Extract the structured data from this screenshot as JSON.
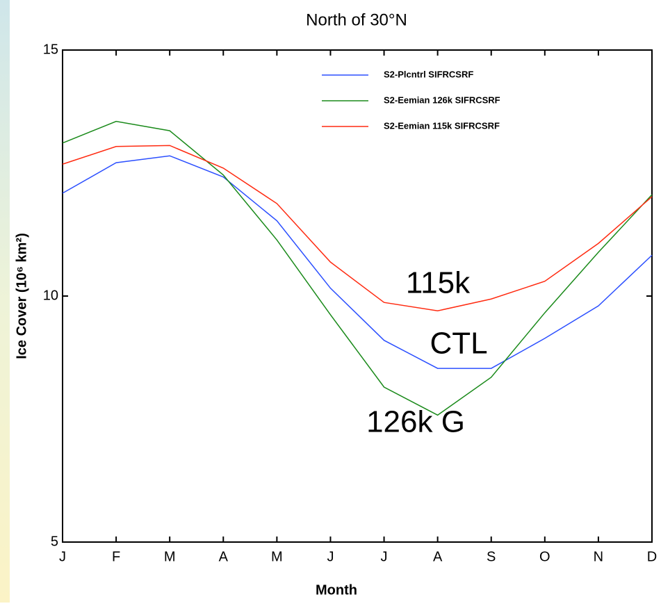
{
  "chart_data": {
    "type": "line",
    "title": "North of 30°N",
    "x_label": "Month",
    "y_label": "Ice Cover (10⁶ km²)",
    "categories": [
      "J",
      "F",
      "M",
      "A",
      "M",
      "J",
      "J",
      "A",
      "S",
      "O",
      "N",
      "D"
    ],
    "series": [
      {
        "name": "S2-Plcntrl SIFRCSRF",
        "color": "#2b4fff",
        "values": [
          12.09,
          12.71,
          12.85,
          12.42,
          11.53,
          10.16,
          9.1,
          8.53,
          8.53,
          9.14,
          9.8,
          10.83
        ]
      },
      {
        "name": "S2-Eemian 126k SIFRCSRF",
        "color": "#1a8a1a",
        "values": [
          13.11,
          13.55,
          13.36,
          12.46,
          11.14,
          9.62,
          8.15,
          7.58,
          8.35,
          9.66,
          10.89,
          12.06
        ]
      },
      {
        "name": "S2-Eemian 115k SIFRCSRF",
        "color": "#ff2a10",
        "values": [
          12.68,
          13.04,
          13.06,
          12.6,
          11.88,
          10.69,
          9.87,
          9.7,
          9.94,
          10.3,
          11.07,
          12.02
        ]
      }
    ],
    "ylim": [
      5,
      15
    ],
    "yticks": [
      5,
      10,
      15
    ],
    "legend": "top-right",
    "annotations": [
      "115k",
      "CTL",
      "126k G"
    ]
  }
}
